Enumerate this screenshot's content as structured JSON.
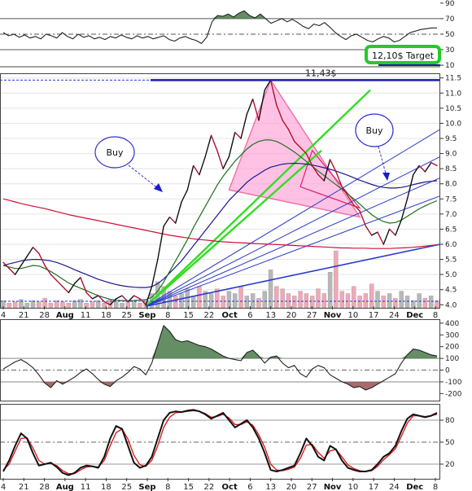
{
  "chart_data": [
    {
      "panel": "top-oscillator",
      "type": "line",
      "y_ticks": [
        "90",
        "70",
        "50",
        "30",
        "10"
      ],
      "ylim": [
        10,
        90
      ],
      "reference_levels": [
        70,
        50,
        30
      ],
      "series": [
        {
          "values": [
            52,
            48,
            50,
            46,
            49,
            45,
            47,
            44,
            50,
            48,
            45,
            52,
            47,
            44,
            50,
            46,
            48,
            44,
            46,
            43,
            47,
            45,
            49,
            46,
            44,
            48,
            45,
            47,
            44,
            46,
            48,
            43,
            41,
            45,
            47,
            44,
            42,
            38,
            46,
            66,
            74,
            73,
            76,
            72,
            77,
            80,
            74,
            71,
            76,
            70,
            64,
            67,
            70,
            66,
            69,
            65,
            60,
            57,
            63,
            61,
            65,
            59,
            52,
            47,
            43,
            48,
            50,
            46,
            42,
            40,
            44,
            47,
            45,
            40,
            42,
            47,
            52,
            54,
            56,
            57,
            58,
            58
          ]
        }
      ],
      "annotations": [
        {
          "text": "12,10$ Target",
          "box_color": "#22cc22"
        }
      ]
    },
    {
      "panel": "price",
      "type": "line",
      "y_ticks": [
        "11.5",
        "11.0",
        "10.5",
        "10.0",
        "9.5",
        "9.0",
        "8.5",
        "8.0",
        "7.5",
        "7.0",
        "6.5",
        "6.0",
        "5.5",
        "5.0",
        "4.5",
        "4.0"
      ],
      "ylim": [
        3.9,
        11.6
      ],
      "x_labels": [
        "4",
        "21",
        "28",
        "Aug",
        "11",
        "18",
        "25",
        "Sep",
        "8",
        "15",
        "22",
        "Oct",
        "6",
        "13",
        "20",
        "27",
        "Nov",
        "10",
        "17",
        "24",
        "Dec",
        "8"
      ],
      "x_labels_bold": [
        "Aug",
        "Sep",
        "Oct",
        "Nov",
        "Dec"
      ],
      "series": [
        {
          "role": "price",
          "values": [
            5.4,
            5.2,
            5.0,
            5.3,
            5.6,
            5.9,
            5.7,
            5.3,
            5.0,
            4.8,
            4.6,
            4.4,
            4.7,
            4.9,
            4.4,
            4.2,
            4.3,
            4.1,
            4.0,
            4.2,
            4.3,
            4.1,
            4.3,
            4.2,
            4.0,
            4.6,
            5.5,
            6.6,
            6.9,
            6.7,
            7.4,
            7.8,
            8.6,
            8.3,
            8.9,
            9.6,
            9.1,
            8.5,
            8.9,
            9.7,
            9.5,
            10.3,
            10.8,
            10.1,
            11.1,
            11.43,
            10.6,
            10.1,
            9.8,
            9.4,
            9.2,
            9.0,
            8.6,
            8.3,
            8.1,
            8.8,
            8.4,
            7.9,
            7.6,
            7.3,
            7.1,
            6.6,
            6.3,
            6.4,
            6.0,
            6.5,
            6.3,
            6.8,
            7.5,
            8.3,
            8.6,
            8.4,
            8.7,
            8.6
          ]
        },
        {
          "role": "ma-long",
          "values": [
            7.5,
            7.45,
            7.4,
            7.35,
            7.3,
            7.26,
            7.22,
            7.18,
            7.13,
            7.08,
            7.03,
            6.98,
            6.94,
            6.9,
            6.86,
            6.82,
            6.78,
            6.74,
            6.7,
            6.66,
            6.62,
            6.58,
            6.54,
            6.5,
            6.46,
            6.42,
            6.38,
            6.34,
            6.3,
            6.27,
            6.24,
            6.21,
            6.18,
            6.16,
            6.14,
            6.12,
            6.1,
            6.08,
            6.07,
            6.06,
            6.05,
            6.04,
            6.03,
            6.02,
            6.01,
            6.0,
            5.99,
            5.98,
            5.97,
            5.96,
            5.95,
            5.94,
            5.93,
            5.92,
            5.91,
            5.9,
            5.89,
            5.88,
            5.88,
            5.87,
            5.87,
            5.87,
            5.86,
            5.86,
            5.86,
            5.86,
            5.87,
            5.88,
            5.89,
            5.9,
            5.92,
            5.94,
            5.96,
            5.98
          ]
        },
        {
          "role": "ma-mid",
          "values": [
            5.3,
            5.35,
            5.4,
            5.45,
            5.48,
            5.5,
            5.5,
            5.48,
            5.45,
            5.4,
            5.33,
            5.25,
            5.16,
            5.08,
            5.0,
            4.92,
            4.84,
            4.78,
            4.72,
            4.67,
            4.63,
            4.6,
            4.58,
            4.57,
            4.57,
            4.6,
            4.7,
            4.85,
            5.05,
            5.25,
            5.45,
            5.7,
            5.95,
            6.2,
            6.45,
            6.7,
            6.95,
            7.2,
            7.45,
            7.65,
            7.85,
            8.05,
            8.2,
            8.32,
            8.45,
            8.55,
            8.6,
            8.65,
            8.67,
            8.68,
            8.67,
            8.65,
            8.62,
            8.58,
            8.53,
            8.48,
            8.42,
            8.35,
            8.28,
            8.2,
            8.12,
            8.05,
            7.98,
            7.92,
            7.88,
            7.86,
            7.86,
            7.88,
            7.92,
            7.97,
            8.02,
            8.06,
            8.08,
            8.1
          ]
        },
        {
          "role": "ma-short",
          "values": [
            5.3,
            5.25,
            5.2,
            5.2,
            5.25,
            5.3,
            5.28,
            5.2,
            5.1,
            4.98,
            4.85,
            4.72,
            4.63,
            4.55,
            4.47,
            4.38,
            4.3,
            4.24,
            4.18,
            4.15,
            4.14,
            4.13,
            4.14,
            4.16,
            4.17,
            4.25,
            4.45,
            4.75,
            5.1,
            5.45,
            5.8,
            6.15,
            6.55,
            6.9,
            7.25,
            7.6,
            7.95,
            8.25,
            8.5,
            8.75,
            8.95,
            9.15,
            9.3,
            9.4,
            9.45,
            9.45,
            9.4,
            9.3,
            9.18,
            9.05,
            8.9,
            8.74,
            8.58,
            8.42,
            8.27,
            8.12,
            7.97,
            7.82,
            7.66,
            7.5,
            7.33,
            7.15,
            6.98,
            6.85,
            6.75,
            6.7,
            6.72,
            6.8,
            6.92,
            7.05,
            7.17,
            7.27,
            7.36,
            7.44
          ]
        }
      ],
      "volume": [
        0.3,
        0.2,
        0.25,
        0.35,
        0.2,
        0.3,
        0.25,
        0.4,
        0.2,
        0.3,
        0.25,
        0.2,
        0.3,
        0.35,
        0.2,
        0.25,
        0.3,
        0.2,
        0.35,
        0.25,
        0.2,
        0.3,
        0.25,
        0.2,
        0.3,
        0.6,
        1.1,
        0.9,
        0.7,
        0.5,
        0.6,
        0.8,
        0.5,
        0.9,
        0.7,
        0.6,
        0.8,
        0.5,
        0.7,
        0.6,
        0.9,
        0.5,
        0.6,
        0.4,
        0.7,
        1.6,
        0.9,
        0.8,
        0.6,
        0.5,
        0.7,
        0.6,
        0.5,
        0.8,
        0.6,
        1.5,
        2.4,
        0.7,
        0.6,
        0.9,
        0.5,
        0.6,
        1.0,
        0.7,
        0.5,
        0.6,
        0.4,
        0.7,
        0.5,
        0.3,
        0.6,
        0.4,
        0.5,
        0.3
      ],
      "annotations": [
        {
          "text": "11,43$"
        },
        {
          "text": "Buy"
        },
        {
          "text": "Buy"
        }
      ],
      "colors": {
        "price": "#111111",
        "ma_long": "#d0103a",
        "ma_mid": "#1a1a8c",
        "ma_short": "#1f6e1f",
        "fan_green": "#33dd22",
        "fan_blue": "#2a3acb",
        "triangle_fill": "#ff9ad5"
      }
    },
    {
      "panel": "cci",
      "type": "line",
      "y_ticks": [
        "400",
        "300",
        "200",
        "100",
        "0",
        "-100",
        "-200"
      ],
      "ylim": [
        -260,
        420
      ],
      "reference_levels": [
        100,
        0,
        -100
      ],
      "series": [
        {
          "values": [
            10,
            40,
            70,
            90,
            60,
            20,
            -40,
            -110,
            -150,
            -90,
            -120,
            -90,
            -60,
            -20,
            10,
            -30,
            -80,
            -120,
            -140,
            -90,
            -60,
            -20,
            30,
            10,
            -40,
            60,
            220,
            380,
            330,
            260,
            240,
            250,
            230,
            210,
            200,
            180,
            150,
            120,
            100,
            90,
            80,
            150,
            170,
            120,
            60,
            110,
            120,
            60,
            20,
            40,
            -30,
            -60,
            10,
            40,
            20,
            -40,
            -70,
            -100,
            -120,
            -150,
            -140,
            -170,
            -150,
            -120,
            -90,
            -60,
            -30,
            60,
            130,
            180,
            170,
            150,
            130,
            120
          ]
        }
      ]
    },
    {
      "panel": "stochastic",
      "type": "line",
      "y_ticks": [
        "80",
        "50",
        "20"
      ],
      "ylim": [
        0,
        100
      ],
      "reference_levels": [
        80,
        50,
        20
      ],
      "x_labels": [
        "4",
        "21",
        "28",
        "Aug",
        "11",
        "18",
        "25",
        "Sep",
        "8",
        "15",
        "22",
        "Oct",
        "6",
        "13",
        "20",
        "27",
        "Nov",
        "10",
        "17",
        "24",
        "Dec",
        "8"
      ],
      "x_labels_bold": [
        "Aug",
        "Sep",
        "Oct",
        "Nov",
        "Dec"
      ],
      "series": [
        {
          "role": "fast",
          "values": [
            10,
            25,
            45,
            62,
            55,
            35,
            18,
            20,
            22,
            16,
            8,
            5,
            8,
            15,
            18,
            17,
            15,
            30,
            55,
            72,
            68,
            45,
            22,
            15,
            18,
            30,
            55,
            80,
            90,
            92,
            91,
            93,
            94,
            92,
            88,
            82,
            86,
            90,
            80,
            70,
            75,
            80,
            70,
            55,
            35,
            12,
            10,
            12,
            15,
            18,
            35,
            55,
            45,
            30,
            25,
            45,
            40,
            25,
            15,
            12,
            10,
            10,
            12,
            20,
            30,
            35,
            45,
            65,
            82,
            88,
            86,
            84,
            86,
            90
          ]
        },
        {
          "role": "signal",
          "values": [
            12,
            20,
            38,
            55,
            56,
            42,
            25,
            20,
            21,
            18,
            11,
            7,
            7,
            12,
            16,
            17,
            16,
            25,
            45,
            63,
            68,
            54,
            32,
            19,
            17,
            25,
            45,
            70,
            84,
            90,
            91,
            92,
            93,
            92,
            89,
            84,
            85,
            88,
            83,
            74,
            74,
            78,
            73,
            60,
            43,
            20,
            12,
            11,
            13,
            16,
            28,
            46,
            47,
            36,
            28,
            38,
            40,
            30,
            19,
            14,
            11,
            10,
            11,
            17,
            26,
            33,
            41,
            58,
            76,
            86,
            86,
            85,
            86,
            88
          ]
        }
      ]
    }
  ]
}
